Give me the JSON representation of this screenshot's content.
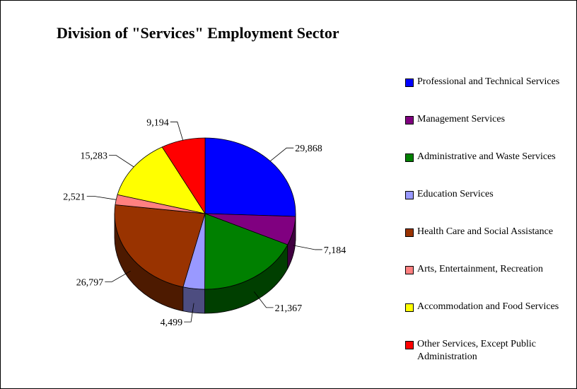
{
  "chart_data": {
    "type": "pie",
    "title": "Division of \"Services\" Employment Sector",
    "series": [
      {
        "name": "Professional and Technical Services",
        "value": 29868,
        "label": "29,868",
        "color": "#0000FF",
        "side": "#00007F"
      },
      {
        "name": "Management Services",
        "value": 7184,
        "label": "7,184",
        "color": "#800080",
        "side": "#400040"
      },
      {
        "name": "Administrative and Waste Services",
        "value": 21367,
        "label": "21,367",
        "color": "#008000",
        "side": "#003F00"
      },
      {
        "name": "Education Services",
        "value": 4499,
        "label": "4,499",
        "color": "#9999FF",
        "side": "#4D4D80"
      },
      {
        "name": "Health Care and Social Assistance",
        "value": 26797,
        "label": "26,797",
        "color": "#993300",
        "side": "#4D1A00"
      },
      {
        "name": "Arts, Entertainment, Recreation",
        "value": 2521,
        "label": "2,521",
        "color": "#FF8080",
        "side": "#804040"
      },
      {
        "name": "Accommodation and Food Services",
        "value": 15283,
        "label": "15,283",
        "color": "#FFFF00",
        "side": "#808000"
      },
      {
        "name": "Other Services, Except Public Administration",
        "value": 9194,
        "label": "9,194",
        "color": "#FF0000",
        "side": "#800000"
      }
    ],
    "legend_position": "right",
    "style": "3d-pie"
  }
}
